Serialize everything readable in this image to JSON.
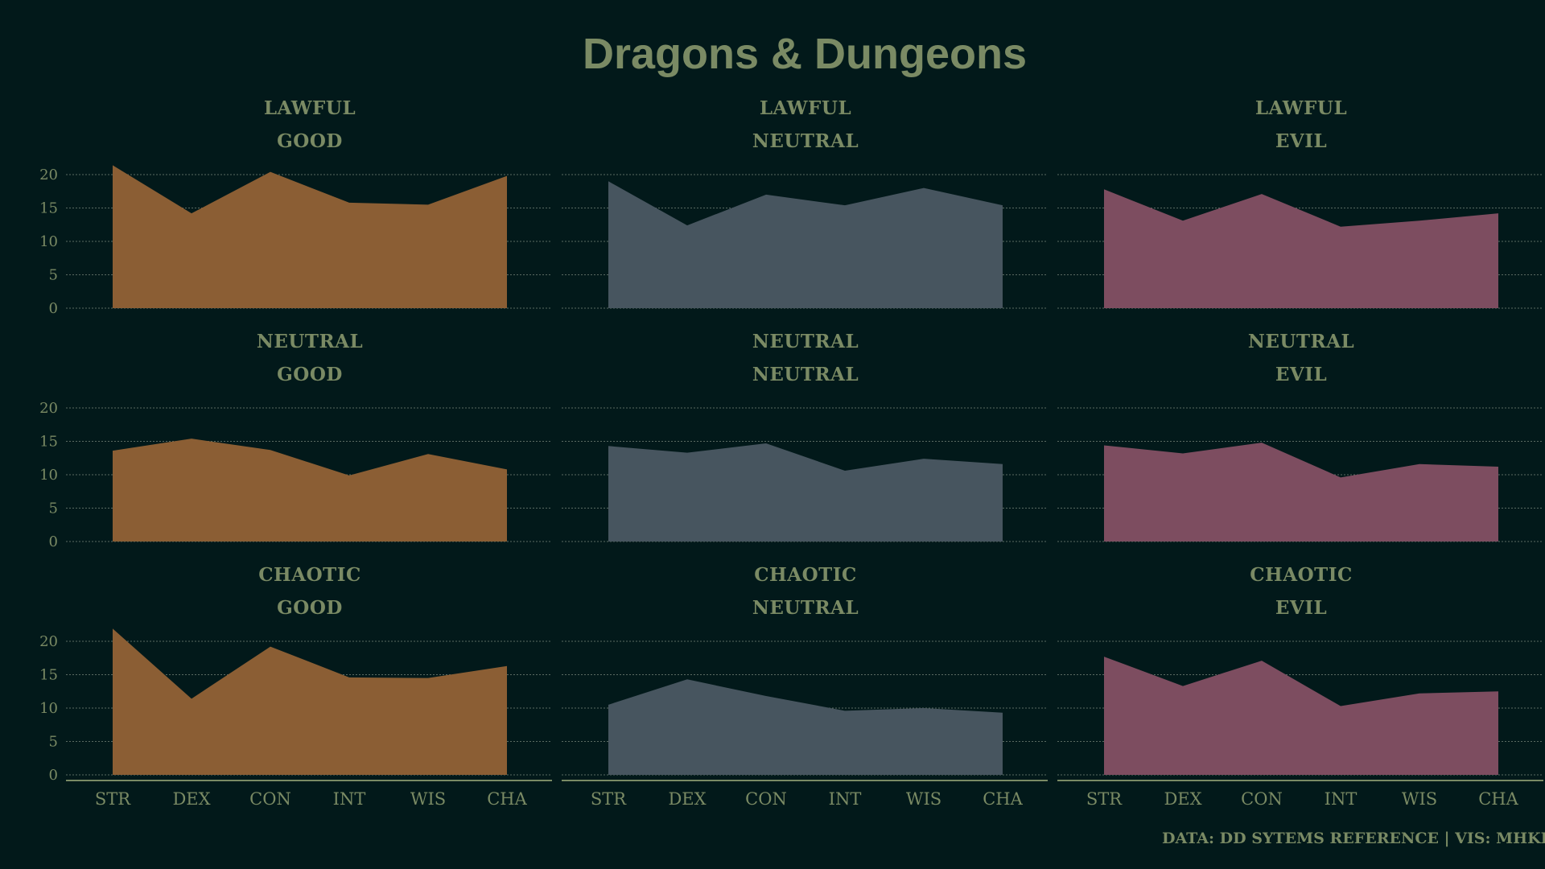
{
  "chart_data": {
    "type": "area",
    "title": "Dragons & Dungeons",
    "caption": "DATA: DD SYTEMS REFERENCE | VIS: MHKIRMIZI",
    "categories": [
      "STR",
      "DEX",
      "CON",
      "INT",
      "WIS",
      "CHA"
    ],
    "ylim": [
      0,
      22
    ],
    "yticks": [
      0,
      5,
      10,
      15,
      20
    ],
    "grid": true,
    "layout": "3x3 facets",
    "colors": {
      "good": "#8b5e34",
      "neutral": "#47555f",
      "evil": "#7d4d60",
      "text": "#7a8a64",
      "background": "#02191a"
    },
    "panels": [
      {
        "title": [
          "LAWFUL",
          "GOOD"
        ],
        "color": "good",
        "values": [
          21.4,
          14.2,
          20.4,
          15.8,
          15.5,
          19.8
        ]
      },
      {
        "title": [
          "LAWFUL",
          "NEUTRAL"
        ],
        "color": "neutral",
        "values": [
          19.0,
          12.4,
          17.0,
          15.4,
          18.0,
          15.4
        ]
      },
      {
        "title": [
          "LAWFUL",
          "EVIL"
        ],
        "color": "evil",
        "values": [
          17.8,
          13.1,
          17.1,
          12.2,
          13.1,
          14.2
        ]
      },
      {
        "title": [
          "NEUTRAL",
          "GOOD"
        ],
        "color": "good",
        "values": [
          13.6,
          15.4,
          13.7,
          9.9,
          13.1,
          10.8
        ]
      },
      {
        "title": [
          "NEUTRAL",
          "NEUTRAL"
        ],
        "color": "neutral",
        "values": [
          14.3,
          13.3,
          14.7,
          10.6,
          12.4,
          11.6
        ]
      },
      {
        "title": [
          "NEUTRAL",
          "EVIL"
        ],
        "color": "evil",
        "values": [
          14.4,
          13.2,
          14.8,
          9.6,
          11.6,
          11.2
        ]
      },
      {
        "title": [
          "CHAOTIC",
          "GOOD"
        ],
        "color": "good",
        "values": [
          21.9,
          11.4,
          19.2,
          14.6,
          14.5,
          16.3
        ]
      },
      {
        "title": [
          "CHAOTIC",
          "NEUTRAL"
        ],
        "color": "neutral",
        "values": [
          10.5,
          14.3,
          11.8,
          9.6,
          10.0,
          9.3
        ]
      },
      {
        "title": [
          "CHAOTIC",
          "EVIL"
        ],
        "color": "evil",
        "values": [
          17.7,
          13.3,
          17.1,
          10.3,
          12.2,
          12.5
        ]
      }
    ]
  }
}
